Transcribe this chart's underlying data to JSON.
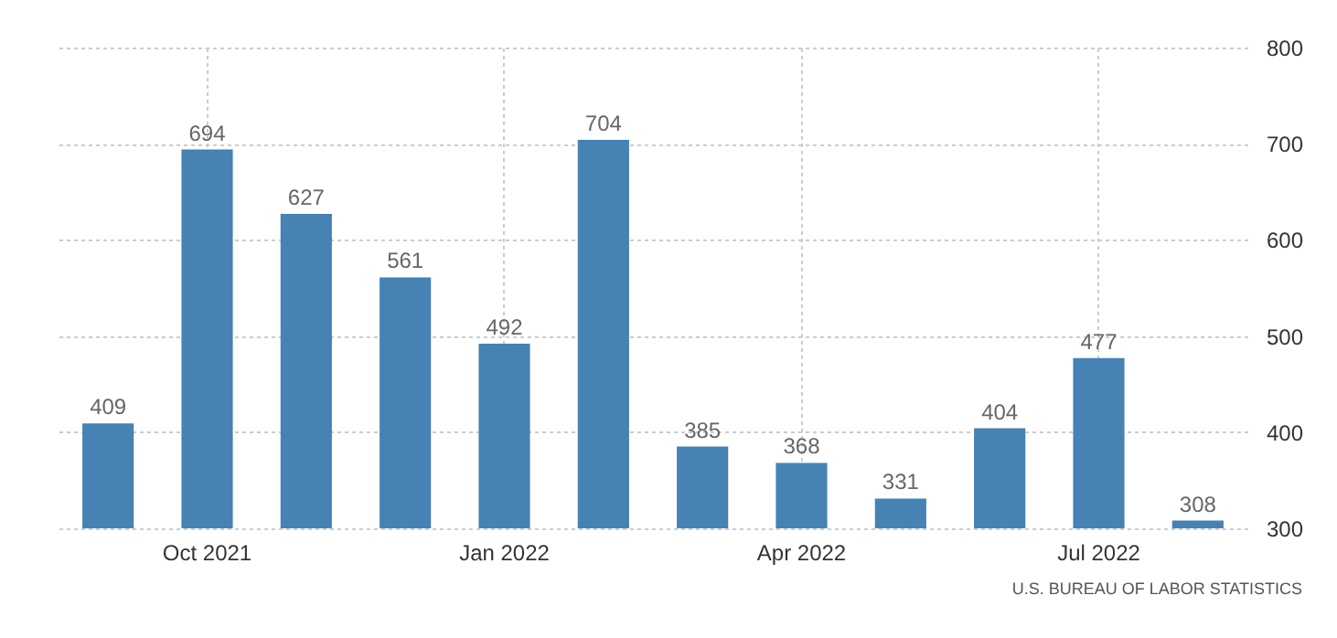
{
  "chart_data": {
    "type": "bar",
    "categories": [
      null,
      "Oct 2021",
      null,
      null,
      "Jan 2022",
      null,
      null,
      "Apr 2022",
      null,
      null,
      "Jul 2022",
      null
    ],
    "values": [
      409,
      694,
      627,
      561,
      492,
      704,
      385,
      368,
      331,
      404,
      477,
      308
    ],
    "color": "#4682b4",
    "ylim": [
      300,
      800
    ],
    "yticks": [
      300,
      400,
      500,
      600,
      700,
      800
    ],
    "grid": true,
    "data_labels": true,
    "annotations": [
      "U.S. BUREAU OF LABOR STATISTICS"
    ]
  }
}
